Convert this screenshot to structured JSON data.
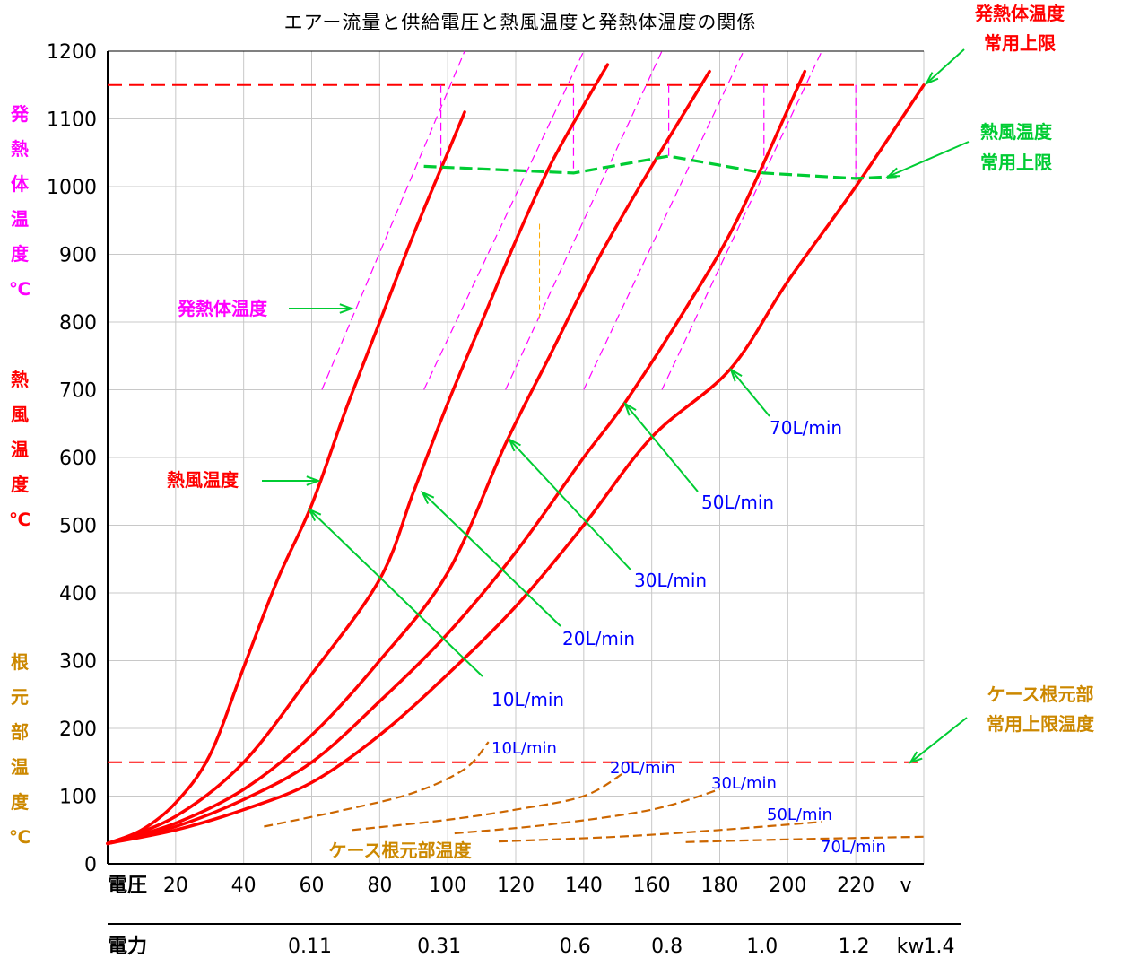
{
  "chart_data": {
    "type": "line",
    "title": "エアー流量と供給電圧と熱風温度と発熱体温度の関係",
    "xlabel": "電圧",
    "x_unit": "v",
    "xlim": [
      0,
      240
    ],
    "x_ticks": [
      20,
      40,
      60,
      80,
      100,
      120,
      140,
      160,
      180,
      200,
      220
    ],
    "ylim": [
      0,
      1200
    ],
    "y_ticks": [
      0,
      100,
      200,
      300,
      400,
      500,
      600,
      700,
      800,
      900,
      1000,
      1100,
      1200
    ],
    "y_axis_labels": [
      {
        "text": "発熱体温度℃",
        "color": "#ff00ff"
      },
      {
        "text": "熱風温度℃",
        "color": "#ff0000"
      },
      {
        "text": "根元部温度℃",
        "color": "#cc8800"
      }
    ],
    "power_axis": {
      "label": "電力",
      "unit": "kw",
      "marks": [
        {
          "v": 60,
          "label": "0.11"
        },
        {
          "v": 98,
          "label": "0.31"
        },
        {
          "v": 138,
          "label": "0.6"
        },
        {
          "v": 165,
          "label": "0.8"
        },
        {
          "v": 193,
          "label": "1.0"
        },
        {
          "v": 220,
          "label": "1.2"
        },
        {
          "v": 245,
          "label": "1.4"
        }
      ]
    },
    "limits": [
      {
        "name": "発熱体温度常用上限",
        "y": 1150,
        "color": "#ff0000"
      },
      {
        "name": "ケース根元部常用上限温度",
        "y": 150,
        "color": "#ff0000"
      }
    ],
    "hot_air_series": [
      {
        "name": "10L/min",
        "points": [
          [
            0,
            30
          ],
          [
            10,
            50
          ],
          [
            20,
            90
          ],
          [
            30,
            160
          ],
          [
            40,
            290
          ],
          [
            50,
            420
          ],
          [
            60,
            530
          ],
          [
            70,
            670
          ],
          [
            80,
            800
          ],
          [
            90,
            930
          ],
          [
            100,
            1050
          ],
          [
            105,
            1110
          ]
        ]
      },
      {
        "name": "20L/min",
        "points": [
          [
            0,
            30
          ],
          [
            20,
            70
          ],
          [
            40,
            150
          ],
          [
            60,
            280
          ],
          [
            80,
            420
          ],
          [
            90,
            550
          ],
          [
            100,
            680
          ],
          [
            110,
            800
          ],
          [
            120,
            920
          ],
          [
            130,
            1030
          ],
          [
            140,
            1120
          ],
          [
            147,
            1180
          ]
        ]
      },
      {
        "name": "30L/min",
        "points": [
          [
            0,
            30
          ],
          [
            20,
            60
          ],
          [
            40,
            110
          ],
          [
            60,
            190
          ],
          [
            80,
            300
          ],
          [
            100,
            430
          ],
          [
            117,
            620
          ],
          [
            130,
            750
          ],
          [
            145,
            900
          ],
          [
            160,
            1030
          ],
          [
            177,
            1170
          ]
        ]
      },
      {
        "name": "50L/min",
        "points": [
          [
            0,
            30
          ],
          [
            20,
            55
          ],
          [
            40,
            95
          ],
          [
            60,
            150
          ],
          [
            80,
            240
          ],
          [
            100,
            340
          ],
          [
            120,
            460
          ],
          [
            140,
            600
          ],
          [
            152,
            680
          ],
          [
            170,
            820
          ],
          [
            185,
            950
          ],
          [
            205,
            1170
          ]
        ]
      },
      {
        "name": "70L/min",
        "points": [
          [
            0,
            30
          ],
          [
            20,
            50
          ],
          [
            40,
            80
          ],
          [
            60,
            120
          ],
          [
            80,
            190
          ],
          [
            100,
            280
          ],
          [
            120,
            380
          ],
          [
            140,
            500
          ],
          [
            160,
            630
          ],
          [
            183,
            730
          ],
          [
            200,
            860
          ],
          [
            220,
            1000
          ],
          [
            240,
            1150
          ]
        ]
      }
    ],
    "hot_air_limit_curve": {
      "name": "熱風温度常用上限",
      "points": [
        [
          93,
          1030
        ],
        [
          137,
          1020
        ],
        [
          165,
          1045
        ],
        [
          193,
          1020
        ],
        [
          220,
          1012
        ],
        [
          232,
          1015
        ]
      ]
    },
    "heater_temp_lines": [
      {
        "series": "10L/min",
        "points": [
          [
            63,
            700
          ],
          [
            105,
            1200
          ]
        ]
      },
      {
        "series": "20L/min",
        "points": [
          [
            93,
            700
          ],
          [
            140,
            1200
          ]
        ]
      },
      {
        "series": "30L/min",
        "points": [
          [
            117,
            700
          ],
          [
            163,
            1200
          ]
        ]
      },
      {
        "series": "50L/min",
        "points": [
          [
            140,
            700
          ],
          [
            187,
            1200
          ]
        ]
      },
      {
        "series": "70L/min",
        "points": [
          [
            163,
            700
          ],
          [
            210,
            1200
          ]
        ]
      }
    ],
    "case_root_series": [
      {
        "name": "10L/min",
        "points": [
          [
            46,
            55
          ],
          [
            70,
            80
          ],
          [
            90,
            105
          ],
          [
            105,
            140
          ],
          [
            112,
            180
          ]
        ]
      },
      {
        "name": "20L/min",
        "points": [
          [
            72,
            50
          ],
          [
            100,
            65
          ],
          [
            120,
            80
          ],
          [
            140,
            100
          ],
          [
            152,
            135
          ]
        ]
      },
      {
        "name": "30L/min",
        "points": [
          [
            102,
            45
          ],
          [
            130,
            58
          ],
          [
            160,
            80
          ],
          [
            180,
            110
          ]
        ]
      },
      {
        "name": "50L/min",
        "points": [
          [
            115,
            33
          ],
          [
            150,
            40
          ],
          [
            180,
            50
          ],
          [
            210,
            62
          ]
        ]
      },
      {
        "name": "70L/min",
        "points": [
          [
            170,
            32
          ],
          [
            200,
            36
          ],
          [
            240,
            40
          ]
        ]
      }
    ]
  },
  "annotations": {
    "heater_limit": [
      "発熱体温度",
      "常用上限"
    ],
    "air_limit": [
      "熱風温度",
      "常用上限"
    ],
    "case_limit": [
      "ケース根元部",
      "常用上限温度"
    ],
    "heater_temp": "発熱体温度",
    "hot_air_temp": "熱風温度",
    "case_root_temp": "ケース根元部温度",
    "flow_labels": [
      "10L/min",
      "20L/min",
      "30L/min",
      "50L/min",
      "70L/min"
    ]
  },
  "colors": {
    "hot_air": "#ff0000",
    "limit": "#ff0000",
    "heater": "#ff00ff",
    "air_limit": "#00cc33",
    "case_root": "#cc6600",
    "flow_label": "#0000ff",
    "grid": "#c8c8c8"
  }
}
